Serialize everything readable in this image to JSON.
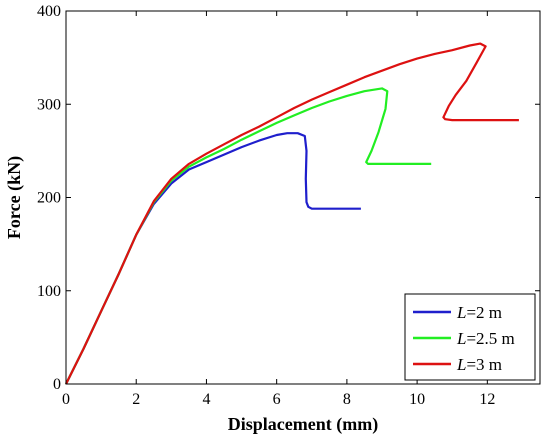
{
  "chart_data": {
    "type": "line",
    "xlabel": "Displacement (mm)",
    "ylabel": "Force (kN)",
    "xlim": [
      0,
      13.5
    ],
    "ylim": [
      0,
      400
    ],
    "xticks": [
      0,
      2,
      4,
      6,
      8,
      10,
      12
    ],
    "yticks": [
      0,
      100,
      200,
      300,
      400
    ],
    "xtick_labels": [
      "0",
      "2",
      "4",
      "6",
      "8",
      "10",
      "12"
    ],
    "ytick_labels": [
      "0",
      "100",
      "200",
      "300",
      "400"
    ],
    "grid": false,
    "legend_position": "bottom-right",
    "series": [
      {
        "name": "L=2 m",
        "legend_var": "L",
        "legend_rest": "=2 m",
        "color": "#1f1fcc",
        "x": [
          0,
          0.5,
          1,
          1.5,
          2,
          2.5,
          3,
          3.5,
          4,
          4.5,
          5,
          5.5,
          6,
          6.3,
          6.6,
          6.8,
          6.85,
          6.83,
          6.85,
          6.9,
          7.0,
          7.2,
          8.4
        ],
        "y": [
          0,
          38,
          78,
          118,
          160,
          193,
          215,
          230,
          238,
          246,
          254,
          261,
          267,
          269,
          269,
          266,
          250,
          220,
          195,
          190,
          188,
          188,
          188
        ]
      },
      {
        "name": "L=2.5 m",
        "legend_var": "L",
        "legend_rest": "=2.5 m",
        "color": "#22ee22",
        "x": [
          0,
          0.5,
          1,
          1.5,
          2,
          2.5,
          3,
          3.5,
          4,
          4.5,
          5,
          5.5,
          6,
          6.5,
          7,
          7.5,
          8,
          8.5,
          9.0,
          9.15,
          9.1,
          8.9,
          8.7,
          8.55,
          8.6,
          8.8,
          10.4
        ],
        "y": [
          0,
          38,
          78,
          118,
          160,
          195,
          218,
          233,
          243,
          252,
          262,
          271,
          280,
          288,
          296,
          303,
          309,
          314,
          317,
          314,
          295,
          270,
          250,
          238,
          236,
          236,
          236
        ]
      },
      {
        "name": "L=3 m",
        "legend_var": "L",
        "legend_rest": "=3 m",
        "color": "#dd1111",
        "x": [
          0,
          0.5,
          1,
          1.5,
          2,
          2.5,
          3,
          3.5,
          4,
          4.5,
          5,
          5.5,
          6,
          6.5,
          7,
          7.5,
          8,
          8.5,
          9,
          9.5,
          10,
          10.5,
          11,
          11.5,
          11.8,
          11.95,
          11.7,
          11.4,
          11.1,
          10.9,
          10.75,
          10.8,
          11.0,
          12.9
        ],
        "y": [
          0,
          38,
          78,
          118,
          160,
          196,
          220,
          236,
          247,
          257,
          267,
          276,
          286,
          296,
          305,
          313,
          321,
          329,
          336,
          343,
          349,
          354,
          358,
          363,
          365,
          362,
          345,
          325,
          310,
          298,
          286,
          284,
          283,
          283
        ]
      }
    ]
  }
}
